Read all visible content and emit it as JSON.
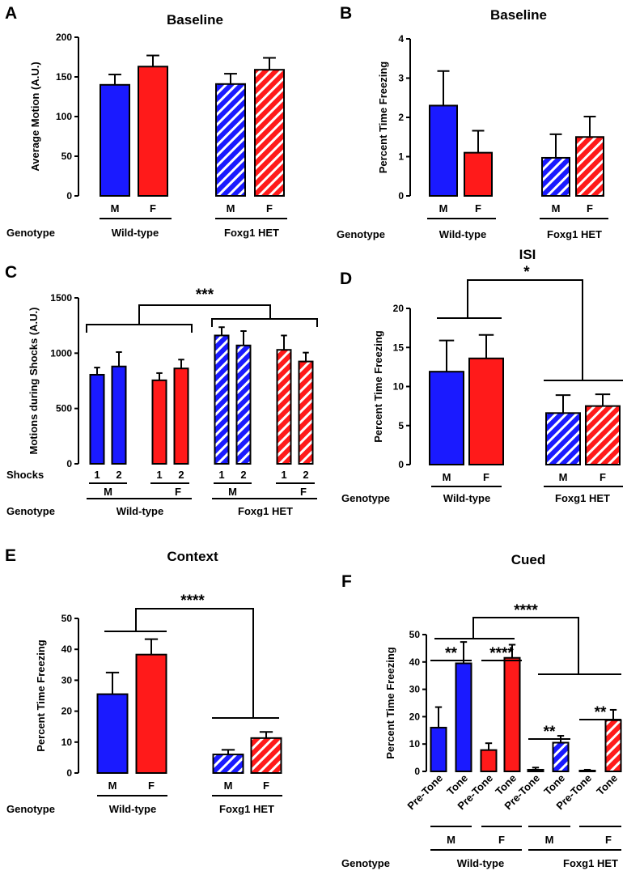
{
  "genotype_label": "Genotype",
  "shocks_label": "Shocks",
  "colors": {
    "wt_m": "#1a1aff",
    "wt_f": "#ff1a1a",
    "het_m": "#1a1aff",
    "het_f": "#ff1a1a"
  },
  "chart_data": [
    {
      "id": "A",
      "panel_label": "A",
      "type": "bar",
      "title": "Baseline",
      "ylabel": "Average Motion (A.U.)",
      "ylim": [
        0,
        200
      ],
      "yticks": [
        0,
        50,
        100,
        150,
        200
      ],
      "categories": [
        "M",
        "F",
        "M",
        "F"
      ],
      "groups": [
        "Wild-type",
        "Foxg1 HET"
      ],
      "values": [
        140,
        163,
        141,
        159
      ],
      "errors": [
        13,
        14,
        13,
        15
      ]
    },
    {
      "id": "B",
      "panel_label": "B",
      "type": "bar",
      "title": "Baseline",
      "ylabel": "Percent Time Freezing",
      "ylim": [
        0,
        4
      ],
      "yticks": [
        0,
        1,
        2,
        3,
        4
      ],
      "categories": [
        "M",
        "F",
        "M",
        "F"
      ],
      "groups": [
        "Wild-type",
        "Foxg1 HET"
      ],
      "values": [
        2.3,
        1.1,
        0.97,
        1.5
      ],
      "errors": [
        0.88,
        0.56,
        0.6,
        0.52
      ]
    },
    {
      "id": "C",
      "panel_label": "C",
      "type": "bar",
      "title": "",
      "ylabel": "Motions during Shocks (A.U.)",
      "ylim": [
        0,
        1500
      ],
      "yticks": [
        0,
        500,
        1000,
        1500
      ],
      "categories": [
        "1",
        "2",
        "1",
        "2",
        "1",
        "2",
        "1",
        "2"
      ],
      "sex_labels": [
        "M",
        "F",
        "M",
        "F"
      ],
      "groups": [
        "Wild-type",
        "Foxg1 HET"
      ],
      "values": [
        805,
        880,
        755,
        862,
        1160,
        1070,
        1030,
        925
      ],
      "errors": [
        65,
        130,
        65,
        80,
        75,
        130,
        130,
        80
      ],
      "significance": "***"
    },
    {
      "id": "D",
      "panel_label": "D",
      "type": "bar",
      "title": "ISI",
      "ylabel": "Percent Time Freezing",
      "ylim": [
        0,
        20
      ],
      "yticks": [
        0,
        5,
        10,
        15,
        20
      ],
      "categories": [
        "M",
        "F",
        "M",
        "F"
      ],
      "groups": [
        "Wild-type",
        "Foxg1 HET"
      ],
      "values": [
        11.9,
        13.6,
        6.6,
        7.5
      ],
      "errors": [
        4.0,
        3.0,
        2.3,
        1.5
      ],
      "significance": "*"
    },
    {
      "id": "E",
      "panel_label": "E",
      "type": "bar",
      "title": "Context",
      "ylabel": "Percent Time Freezing",
      "ylim": [
        0,
        50
      ],
      "yticks": [
        0,
        10,
        20,
        30,
        40,
        50
      ],
      "categories": [
        "M",
        "F",
        "M",
        "F"
      ],
      "groups": [
        "Wild-type",
        "Foxg1 HET"
      ],
      "values": [
        25.5,
        38.3,
        6.0,
        11.3
      ],
      "errors": [
        7.0,
        5.0,
        1.5,
        2.0
      ],
      "significance": "****"
    },
    {
      "id": "F",
      "panel_label": "F",
      "type": "bar",
      "title": "Cued",
      "ylabel": "Percent Time Freezing",
      "ylim": [
        0,
        50
      ],
      "yticks": [
        0,
        10,
        20,
        30,
        40,
        50
      ],
      "categories": [
        "Pre-Tone",
        "Tone",
        "Pre-Tone",
        "Tone",
        "Pre-Tone",
        "Tone",
        "Pre-Tone",
        "Tone"
      ],
      "sex_labels": [
        "M",
        "F",
        "M",
        "F"
      ],
      "groups": [
        "Wild-type",
        "Foxg1 HET"
      ],
      "values": [
        16.0,
        39.5,
        7.8,
        41.5,
        0.6,
        10.5,
        0.3,
        18.7
      ],
      "errors": [
        7.5,
        7.8,
        2.5,
        4.8,
        0.8,
        2.5,
        0.3,
        3.8
      ],
      "pair_significance": [
        "**",
        "****",
        "**",
        "**"
      ],
      "significance": "****"
    }
  ]
}
